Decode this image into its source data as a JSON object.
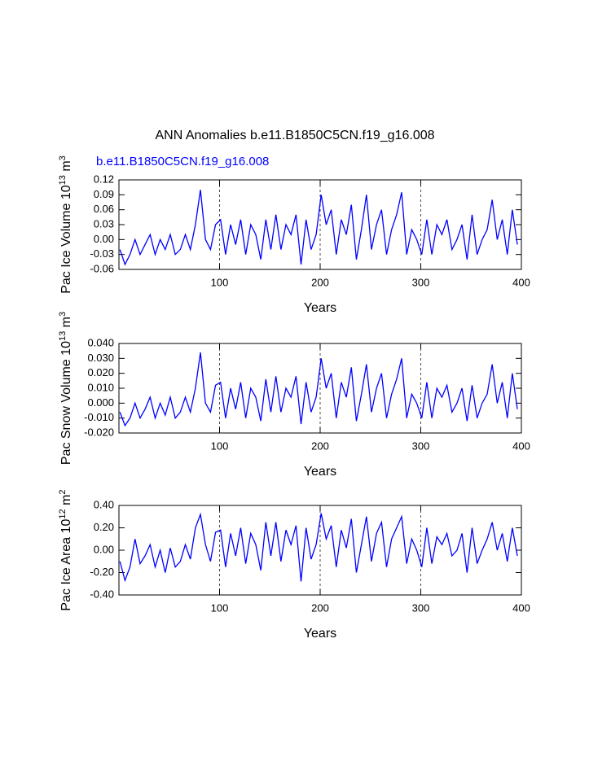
{
  "chart_data": [
    {
      "type": "line",
      "title": "ANN Anomalies b.e11.B1850C5CN.f19_g16.008",
      "subtitle": "b.e11.B1850C5CN.f19_g16.008",
      "subtitle_color": "#0000ff",
      "ylabel": {
        "text": "Pac Ice Volume 10",
        "exp": "13",
        "unit": " m",
        "unit_exp": "3"
      },
      "xlabel": "Years",
      "xlim": [
        0,
        400
      ],
      "xticks": [
        100,
        200,
        300,
        400
      ],
      "grid": true,
      "ylim": [
        -0.06,
        0.12
      ],
      "yticks": [
        -0.06,
        -0.03,
        {
          "value": 0,
          "label": "0.00"
        },
        0.03,
        0.06,
        0.09,
        0.12
      ],
      "x": [
        1,
        6,
        11,
        16,
        21,
        26,
        31,
        36,
        41,
        46,
        51,
        56,
        61,
        66,
        71,
        76,
        81,
        86,
        91,
        96,
        101,
        106,
        111,
        116,
        121,
        126,
        131,
        136,
        141,
        146,
        151,
        156,
        161,
        166,
        171,
        176,
        181,
        186,
        191,
        196,
        201,
        206,
        211,
        216,
        221,
        226,
        231,
        236,
        241,
        246,
        251,
        256,
        261,
        266,
        271,
        276,
        281,
        286,
        291,
        296,
        301,
        306,
        311,
        316,
        321,
        326,
        331,
        336,
        341,
        346,
        351,
        356,
        361,
        366,
        371,
        376,
        381,
        386,
        391,
        396
      ],
      "series": [
        {
          "color": "#0000ff",
          "values": [
            -0.02,
            -0.05,
            -0.03,
            0.0,
            -0.03,
            -0.01,
            0.01,
            -0.03,
            0.0,
            -0.02,
            0.01,
            -0.03,
            -0.02,
            0.01,
            -0.02,
            0.03,
            0.1,
            0.0,
            -0.02,
            0.03,
            0.04,
            -0.03,
            0.03,
            -0.01,
            0.04,
            -0.03,
            0.03,
            0.01,
            -0.04,
            0.04,
            -0.02,
            0.05,
            -0.02,
            0.03,
            0.01,
            0.05,
            -0.05,
            0.04,
            -0.02,
            0.01,
            0.09,
            0.03,
            0.06,
            -0.03,
            0.04,
            0.01,
            0.07,
            -0.04,
            0.02,
            0.09,
            -0.02,
            0.03,
            0.06,
            -0.03,
            0.02,
            0.05,
            0.095,
            -0.03,
            0.02,
            0.0,
            -0.03,
            0.04,
            -0.03,
            0.03,
            0.01,
            0.04,
            -0.02,
            0.0,
            0.03,
            -0.04,
            0.05,
            -0.03,
            0.0,
            0.02,
            0.08,
            0.0,
            0.04,
            -0.03,
            0.06,
            -0.01
          ]
        }
      ]
    },
    {
      "type": "line",
      "ylabel": {
        "text": "Pac Snow Volume 10",
        "exp": "13",
        "unit": " m",
        "unit_exp": "3"
      },
      "xlabel": "Years",
      "xlim": [
        0,
        400
      ],
      "xticks": [
        100,
        200,
        300,
        400
      ],
      "grid": true,
      "ylim": [
        -0.02,
        0.04
      ],
      "yticks": [
        {
          "value": -0.02,
          "label": "-0.020"
        },
        {
          "value": -0.01,
          "label": "-0.010"
        },
        {
          "value": 0,
          "label": "0.000"
        },
        {
          "value": 0.01,
          "label": "0.010"
        },
        {
          "value": 0.02,
          "label": "0.020"
        },
        {
          "value": 0.03,
          "label": "0.030"
        },
        {
          "value": 0.04,
          "label": "0.040"
        }
      ],
      "x": [
        1,
        6,
        11,
        16,
        21,
        26,
        31,
        36,
        41,
        46,
        51,
        56,
        61,
        66,
        71,
        76,
        81,
        86,
        91,
        96,
        101,
        106,
        111,
        116,
        121,
        126,
        131,
        136,
        141,
        146,
        151,
        156,
        161,
        166,
        171,
        176,
        181,
        186,
        191,
        196,
        201,
        206,
        211,
        216,
        221,
        226,
        231,
        236,
        241,
        246,
        251,
        256,
        261,
        266,
        271,
        276,
        281,
        286,
        291,
        296,
        301,
        306,
        311,
        316,
        321,
        326,
        331,
        336,
        341,
        346,
        351,
        356,
        361,
        366,
        371,
        376,
        381,
        386,
        391,
        396
      ],
      "series": [
        {
          "color": "#0000ff",
          "values": [
            -0.006,
            -0.015,
            -0.01,
            0.0,
            -0.01,
            -0.004,
            0.004,
            -0.01,
            0.0,
            -0.008,
            0.004,
            -0.01,
            -0.006,
            0.004,
            -0.006,
            0.01,
            0.034,
            0.0,
            -0.006,
            0.012,
            0.014,
            -0.01,
            0.01,
            -0.004,
            0.014,
            -0.01,
            0.01,
            0.004,
            -0.012,
            0.016,
            -0.006,
            0.018,
            -0.006,
            0.01,
            0.004,
            0.018,
            -0.014,
            0.014,
            -0.006,
            0.004,
            0.03,
            0.01,
            0.02,
            -0.01,
            0.014,
            0.004,
            0.024,
            -0.012,
            0.006,
            0.026,
            -0.006,
            0.01,
            0.02,
            -0.01,
            0.006,
            0.016,
            0.03,
            -0.01,
            0.006,
            0.0,
            -0.01,
            0.014,
            -0.01,
            0.01,
            0.004,
            0.012,
            -0.006,
            0.0,
            0.01,
            -0.012,
            0.012,
            -0.01,
            0.0,
            0.006,
            0.026,
            0.0,
            0.014,
            -0.01,
            0.02,
            -0.004
          ]
        }
      ]
    },
    {
      "type": "line",
      "ylabel": {
        "text": "Pac Ice Area 10",
        "exp": "12",
        "unit": " m",
        "unit_exp": "2"
      },
      "xlabel": "Years",
      "xlim": [
        0,
        400
      ],
      "xticks": [
        100,
        200,
        300,
        400
      ],
      "grid": true,
      "ylim": [
        -0.4,
        0.4
      ],
      "yticks": [
        {
          "value": -0.4,
          "label": "-0.40"
        },
        {
          "value": -0.2,
          "label": "-0.20"
        },
        {
          "value": 0,
          "label": "0.00"
        },
        {
          "value": 0.2,
          "label": "0.20"
        },
        {
          "value": 0.4,
          "label": "0.40"
        }
      ],
      "x": [
        1,
        6,
        11,
        16,
        21,
        26,
        31,
        36,
        41,
        46,
        51,
        56,
        61,
        66,
        71,
        76,
        81,
        86,
        91,
        96,
        101,
        106,
        111,
        116,
        121,
        126,
        131,
        136,
        141,
        146,
        151,
        156,
        161,
        166,
        171,
        176,
        181,
        186,
        191,
        196,
        201,
        206,
        211,
        216,
        221,
        226,
        231,
        236,
        241,
        246,
        251,
        256,
        261,
        266,
        271,
        276,
        281,
        286,
        291,
        296,
        301,
        306,
        311,
        316,
        321,
        326,
        331,
        336,
        341,
        346,
        351,
        356,
        361,
        366,
        371,
        376,
        381,
        386,
        391,
        396
      ],
      "series": [
        {
          "color": "#0000ff",
          "values": [
            -0.1,
            -0.27,
            -0.15,
            0.1,
            -0.12,
            -0.05,
            0.05,
            -0.15,
            0.0,
            -0.2,
            0.02,
            -0.15,
            -0.1,
            0.05,
            -0.08,
            0.2,
            0.32,
            0.05,
            -0.1,
            0.16,
            0.18,
            -0.15,
            0.15,
            -0.05,
            0.2,
            -0.12,
            0.15,
            0.05,
            -0.18,
            0.25,
            -0.05,
            0.25,
            -0.1,
            0.18,
            0.05,
            0.22,
            -0.28,
            0.2,
            -0.08,
            0.05,
            0.33,
            0.1,
            0.22,
            -0.15,
            0.18,
            0.02,
            0.28,
            -0.2,
            0.05,
            0.3,
            -0.1,
            0.15,
            0.25,
            -0.15,
            0.1,
            0.2,
            0.3,
            -0.12,
            0.1,
            0.0,
            -0.15,
            0.2,
            -0.12,
            0.12,
            0.05,
            0.15,
            -0.05,
            0.0,
            0.15,
            -0.2,
            0.2,
            -0.12,
            0.0,
            0.1,
            0.25,
            0.0,
            0.15,
            -0.1,
            0.2,
            -0.05
          ]
        }
      ]
    }
  ]
}
